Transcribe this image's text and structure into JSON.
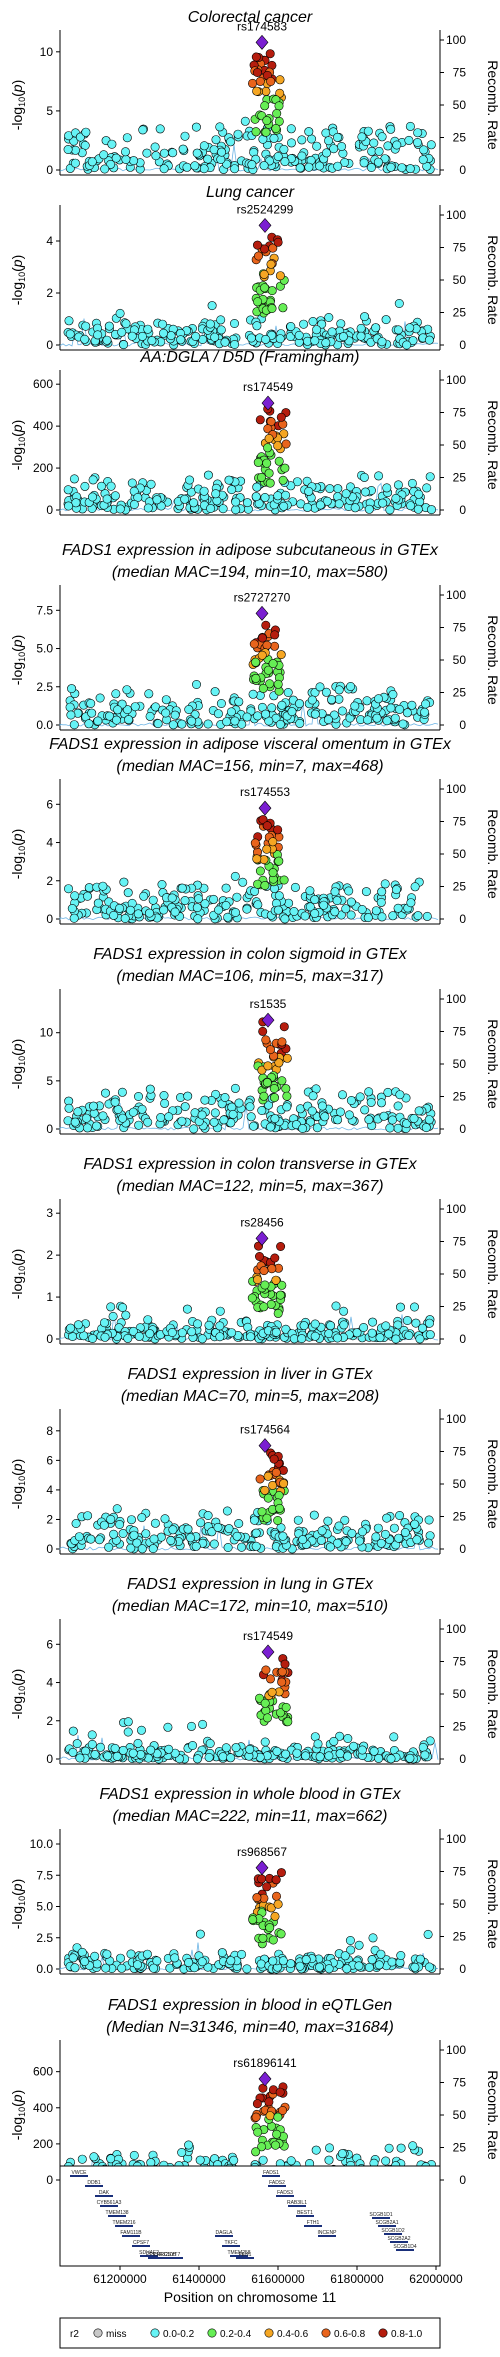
{
  "colors": {
    "miss": "#c8c8c8",
    "r2_0_02": "#66f3f5",
    "r2_02_04": "#66ee55",
    "r2_04_06": "#f5a623",
    "r2_06_08": "#e8641c",
    "r2_08_10": "#b51d0e",
    "lead": "#7a1fd1",
    "recomb_line": "#4aa3df"
  },
  "right_axis_label": "Recomb. Rate",
  "right_axis_ticks": [
    "0",
    "25",
    "50",
    "75",
    "100"
  ],
  "left_axis_label": "-log10(p)",
  "chart_data": [
    {
      "type": "scatter",
      "title_lines": [
        "Colorectal cancer"
      ],
      "lead_snp": "rs174583",
      "ylim": [
        0,
        11
      ],
      "yticks": [
        0,
        5,
        10
      ],
      "peak": 10.8
    },
    {
      "type": "scatter",
      "title_lines": [
        "Lung cancer"
      ],
      "lead_snp": "rs2524299",
      "ylim": [
        0,
        5
      ],
      "yticks": [
        0,
        2,
        4
      ],
      "peak": 4.6
    },
    {
      "type": "scatter",
      "title_lines": [
        "AA:DGLA / D5D (Framingham)"
      ],
      "lead_snp": "rs174549",
      "ylim": [
        0,
        620
      ],
      "yticks": [
        0,
        200,
        400,
        600
      ],
      "peak": 510
    },
    {
      "type": "scatter",
      "title_lines": [
        "FADS1 expression in adipose subcutaneous in GTEx",
        "(median MAC=194, min=10, max=580)"
      ],
      "lead_snp": "rs2727270",
      "ylim": [
        0,
        8.5
      ],
      "yticks": [
        0.0,
        2.5,
        5.0,
        7.5
      ],
      "tick_decimals": 1,
      "peak": 7.3
    },
    {
      "type": "scatter",
      "title_lines": [
        "FADS1 expression in adipose visceral omentum in GTEx",
        "(median MAC=156, min=7, max=468)"
      ],
      "lead_snp": "rs174553",
      "ylim": [
        0,
        6.8
      ],
      "yticks": [
        0,
        2,
        4,
        6
      ],
      "peak": 5.8
    },
    {
      "type": "scatter",
      "title_lines": [
        "FADS1 expression in colon sigmoid in GTEx",
        "(median MAC=106, min=5, max=317)"
      ],
      "lead_snp": "rs1535",
      "ylim": [
        0,
        13.5
      ],
      "yticks": [
        0,
        5,
        10
      ],
      "peak": 11.3
    },
    {
      "type": "scatter",
      "title_lines": [
        "FADS1 expression in colon transverse in GTEx",
        "(median MAC=122, min=5, max=367)"
      ],
      "lead_snp": "rs28456",
      "ylim": [
        0,
        3.1
      ],
      "yticks": [
        0,
        1,
        2,
        3
      ],
      "peak": 2.4
    },
    {
      "type": "scatter",
      "title_lines": [
        "FADS1 expression in liver in GTEx",
        "(median MAC=70, min=5, max=208)"
      ],
      "lead_snp": "rs174564",
      "ylim": [
        0,
        8.8
      ],
      "yticks": [
        0,
        2,
        4,
        6,
        8
      ],
      "peak": 7.0
    },
    {
      "type": "scatter",
      "title_lines": [
        "FADS1 expression in lung in GTEx",
        "(median MAC=172, min=10, max=510)"
      ],
      "lead_snp": "rs174549",
      "ylim": [
        0,
        6.8
      ],
      "yticks": [
        0,
        2,
        4,
        6
      ],
      "peak": 5.6
    },
    {
      "type": "scatter",
      "title_lines": [
        "FADS1 expression in whole blood in GTEx",
        "(median MAC=222, min=11, max=662)"
      ],
      "lead_snp": "rs968567",
      "ylim": [
        0,
        10.4
      ],
      "yticks": [
        0.0,
        2.5,
        5.0,
        7.5,
        10.0
      ],
      "tick_decimals": 1,
      "peak": 8.1
    },
    {
      "type": "scatter",
      "title_lines": [
        "FADS1 expression in blood in eQTLGen",
        "(Median N=31346, min=40, max=31684)"
      ],
      "lead_snp": "rs61896141",
      "ylim": [
        0,
        720
      ],
      "yticks": [
        0,
        200,
        400,
        600
      ],
      "peak": 560
    }
  ],
  "genes_track": {
    "xlabel": "Position on chromosome 11",
    "xticks": [
      "61200000",
      "61400000",
      "61600000",
      "61800000",
      "62000000"
    ],
    "genes": [
      "VWCE",
      "DDB1",
      "DAK",
      "CYB561A3",
      "TMEM138",
      "TMEM216",
      "FAM111B",
      "CPSF7",
      "SDHAF2",
      "PPP1R32",
      "LRRC10B",
      "SYT7",
      "DAGLA",
      "TKFC",
      "TMEM258",
      "FEN1",
      "FADS1",
      "FADS2",
      "FADS3",
      "RAB3IL1",
      "BEST1",
      "FTH1",
      "INCENP",
      "SCGB1D1",
      "SCGB2A1",
      "SCGB1D2",
      "SCGB2A2",
      "SCGB1D4"
    ]
  },
  "legend": {
    "title": "r2",
    "items": [
      "miss",
      "0.0-0.2",
      "0.2-0.4",
      "0.4-0.6",
      "0.6-0.8",
      "0.8-1.0"
    ]
  }
}
